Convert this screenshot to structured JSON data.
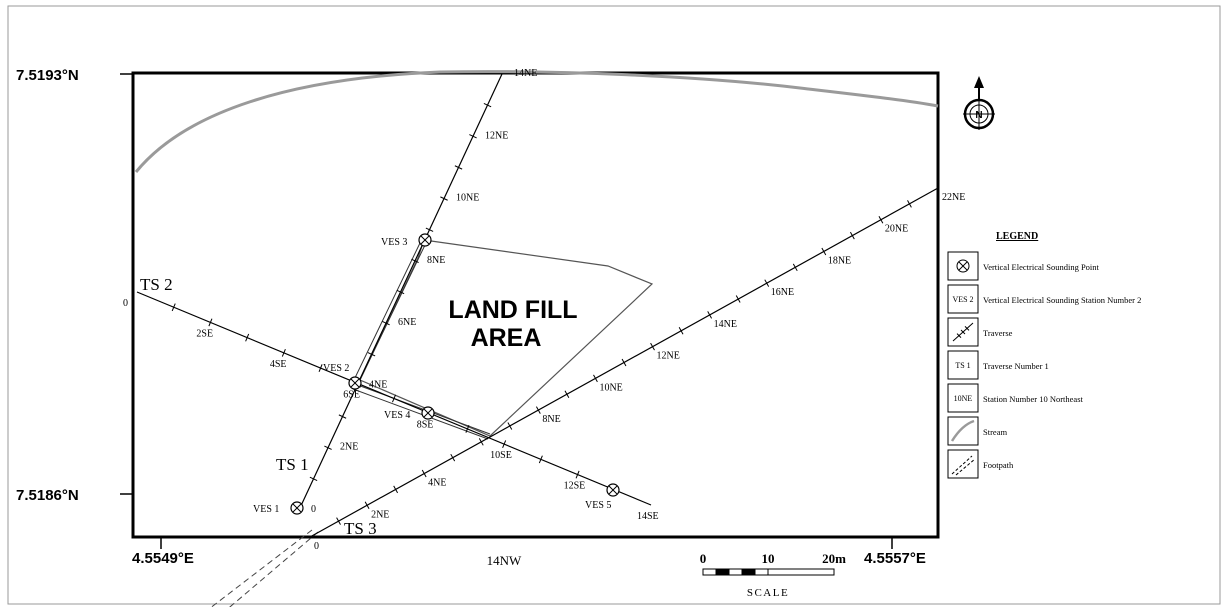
{
  "coords": {
    "lat_top": "7.5193°N",
    "lat_bottom": "7.5186°N",
    "lon_left": "4.5549°E",
    "lon_right": "4.5557°E"
  },
  "area_label": {
    "line1": "LAND FILL",
    "line2": "AREA"
  },
  "traverses": [
    {
      "label": "TS 1",
      "direction": "NE",
      "stations": [
        {
          "text": "0",
          "s": 0
        },
        {
          "text": "2NE",
          "s": 2
        },
        {
          "text": "4NE",
          "s": 4
        },
        {
          "text": "6NE",
          "s": 6
        },
        {
          "text": "8NE",
          "s": 8
        },
        {
          "text": "10NE",
          "s": 10
        },
        {
          "text": "12NE",
          "s": 12
        },
        {
          "text": "14NE",
          "s": 14
        }
      ]
    },
    {
      "label": "TS 2",
      "direction": "SE",
      "stations": [
        {
          "text": "0",
          "s": 0
        },
        {
          "text": "2SE",
          "s": 2
        },
        {
          "text": "4SE",
          "s": 4
        },
        {
          "text": "6SE",
          "s": 6
        },
        {
          "text": "8SE",
          "s": 8
        },
        {
          "text": "10SE",
          "s": 10
        },
        {
          "text": "12SE",
          "s": 12
        },
        {
          "text": "14SE",
          "s": 14
        }
      ]
    },
    {
      "label": "TS 3",
      "direction": "NE",
      "stations": [
        {
          "text": "0",
          "s": 0
        },
        {
          "text": "2NE",
          "s": 2
        },
        {
          "text": "4NE",
          "s": 4
        },
        {
          "text": "8NE",
          "s": 8
        },
        {
          "text": "10NE",
          "s": 10
        },
        {
          "text": "12NE",
          "s": 12
        },
        {
          "text": "14NE",
          "s": 14
        },
        {
          "text": "16NE",
          "s": 16
        },
        {
          "text": "18NE",
          "s": 18
        },
        {
          "text": "20NE",
          "s": 20
        },
        {
          "text": "22NE",
          "s": 22
        }
      ]
    }
  ],
  "ves_points": [
    {
      "label": "VES 1"
    },
    {
      "label": "VES 2"
    },
    {
      "label": "VES 3"
    },
    {
      "label": "VES 4"
    },
    {
      "label": "VES 5"
    }
  ],
  "footpath_label": "14NW",
  "scale": {
    "ticks": [
      "0",
      "10",
      "20m"
    ],
    "label": "SCALE"
  },
  "north_arrow": "N",
  "legend": {
    "title": "LEGEND",
    "items": [
      {
        "symbol": "ves-point",
        "text": "Vertical Electrical Sounding Point"
      },
      {
        "symbol": "ves-station",
        "symbol_text": "VES 2",
        "text": "Vertical Electrical Sounding Station Number 2"
      },
      {
        "symbol": "traverse",
        "text": "Traverse"
      },
      {
        "symbol": "traverse-number",
        "symbol_text": "TS 1",
        "text": "Traverse Number  1"
      },
      {
        "symbol": "station-number",
        "symbol_text": "10NE",
        "text": "Station Number 10 Northeast"
      },
      {
        "symbol": "stream",
        "text": "Stream"
      },
      {
        "symbol": "footpath",
        "text": "Footpath"
      }
    ]
  }
}
